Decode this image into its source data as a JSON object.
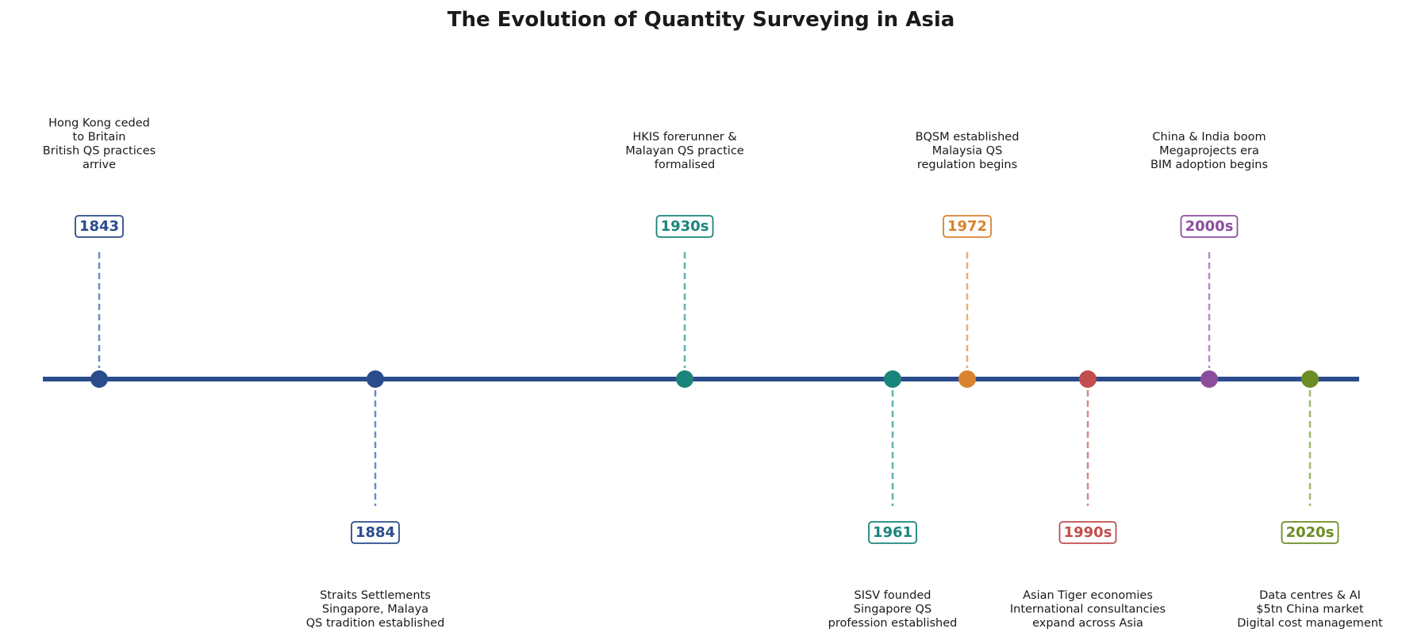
{
  "title": "The Evolution of Quantity Surveying in Asia",
  "events": [
    {
      "label": "1843",
      "color": "#2b4c8c",
      "stem_color": "#6f8cc4",
      "position": "above",
      "lines": [
        "Hong Kong ceded",
        "to Britain",
        "British QS practices",
        "arrive"
      ]
    },
    {
      "label": "1884",
      "color": "#2b4c8c",
      "stem_color": "#6f8cc4",
      "position": "below",
      "lines": [
        "Straits Settlements",
        "Singapore, Malaya",
        "QS tradition established"
      ]
    },
    {
      "label": "1930s",
      "color": "#1a857a",
      "stem_color": "#5fb3aa",
      "position": "above",
      "lines": [
        "HKIS forerunner &",
        "Malayan QS practice",
        "formalised"
      ]
    },
    {
      "label": "1961",
      "color": "#1a857a",
      "stem_color": "#5fb3aa",
      "position": "below",
      "lines": [
        "SISV founded",
        "Singapore QS",
        "profession established"
      ]
    },
    {
      "label": "1972",
      "color": "#d9832e",
      "stem_color": "#ebae72",
      "position": "above",
      "lines": [
        "BQSM established",
        "Malaysia QS",
        "regulation begins"
      ]
    },
    {
      "label": "1990s",
      "color": "#c24d4d",
      "stem_color": "#db8686",
      "position": "below",
      "lines": [
        "Asian Tiger economies",
        "International consultancies",
        "expand across Asia"
      ]
    },
    {
      "label": "2000s",
      "color": "#8c4d9e",
      "stem_color": "#b98ac6",
      "position": "above",
      "lines": [
        "China & India boom",
        "Megaprojects era",
        "BIM adoption begins"
      ]
    },
    {
      "label": "2020s",
      "color": "#6b8c23",
      "stem_color": "#9dba6a",
      "position": "below",
      "lines": [
        "Data centres & AI",
        "$5tn China market",
        "Digital cost management"
      ]
    }
  ],
  "axis_color": "#2b4c8c"
}
